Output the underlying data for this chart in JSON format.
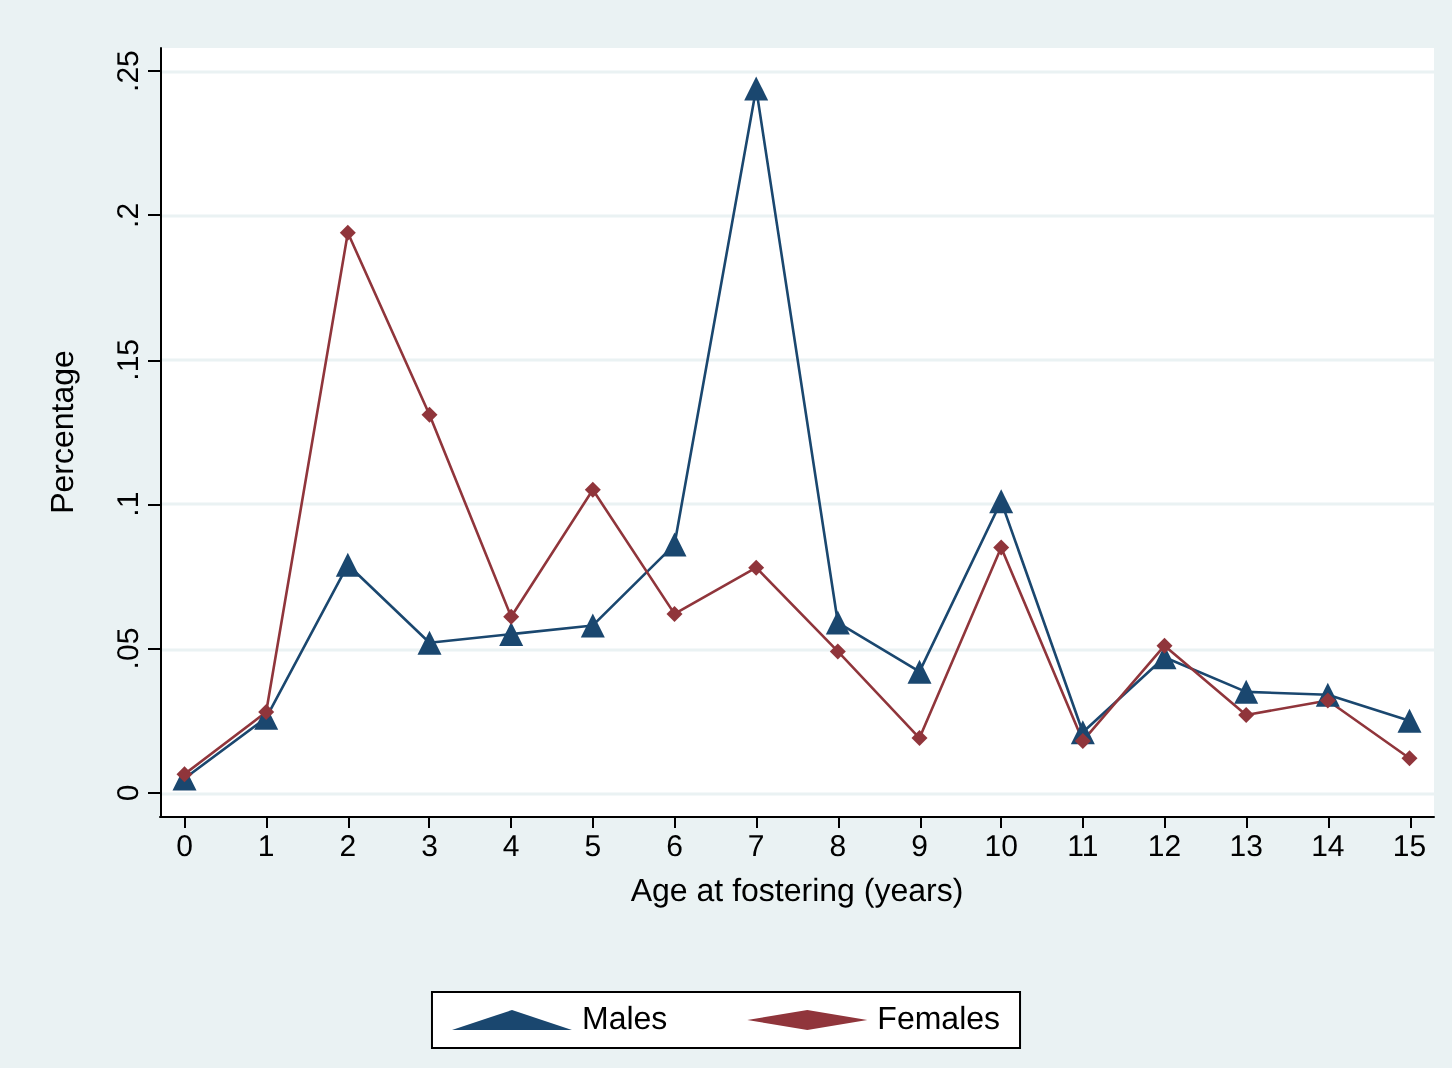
{
  "chart_data": {
    "type": "line",
    "xlabel": "Age at fostering (years)",
    "ylabel": "Percentage",
    "x": [
      0,
      1,
      2,
      3,
      4,
      5,
      6,
      7,
      8,
      9,
      10,
      11,
      12,
      13,
      14,
      15
    ],
    "series": [
      {
        "name": "Males",
        "color": "#1a476f",
        "marker": "triangle",
        "values": [
          0.005,
          0.026,
          0.079,
          0.052,
          0.055,
          0.058,
          0.086,
          0.244,
          0.059,
          0.042,
          0.101,
          0.021,
          0.047,
          0.035,
          0.034,
          0.025
        ]
      },
      {
        "name": "Females",
        "color": "#90353b",
        "marker": "diamond",
        "values": [
          0.0065,
          0.028,
          0.194,
          0.131,
          0.061,
          0.105,
          0.062,
          0.078,
          0.049,
          0.019,
          0.085,
          0.018,
          0.051,
          0.027,
          0.032,
          0.012
        ]
      }
    ],
    "xlim": [
      -0.3,
      15.3
    ],
    "xticks": [
      0,
      1,
      2,
      3,
      4,
      5,
      6,
      7,
      8,
      9,
      10,
      11,
      12,
      13,
      14,
      15
    ],
    "ylim": [
      -0.008,
      0.258
    ],
    "yticks": [
      {
        "value": 0,
        "label": "0"
      },
      {
        "value": 0.05,
        "label": ".05"
      },
      {
        "value": 0.1,
        "label": ".1"
      },
      {
        "value": 0.15,
        "label": ".15"
      },
      {
        "value": 0.2,
        "label": ".2"
      },
      {
        "value": 0.25,
        "label": ".25"
      }
    ],
    "grid": "y",
    "legend": "bottom",
    "line_style": "solid"
  }
}
